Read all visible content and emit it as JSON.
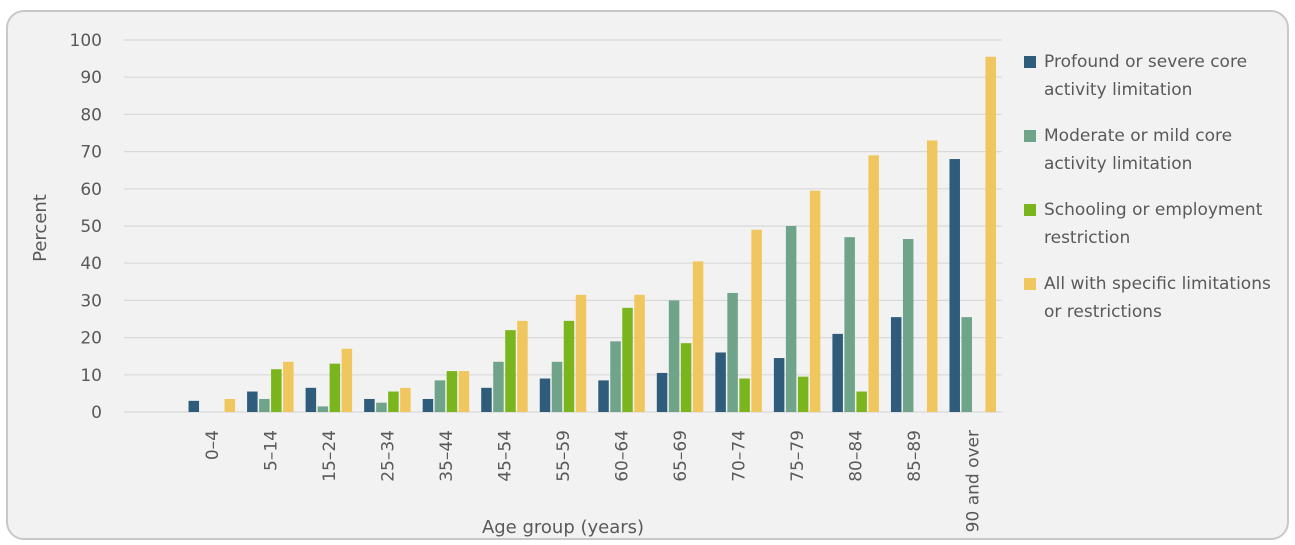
{
  "chart_data": {
    "type": "bar",
    "xlabel": "Age group (years)",
    "ylabel": "Percent",
    "ylim": [
      0,
      100
    ],
    "yticks": [
      0,
      10,
      20,
      30,
      40,
      50,
      60,
      70,
      80,
      90,
      100
    ],
    "grid": true,
    "legend_position": "right",
    "categories": [
      "0–4",
      "5–14",
      "15–24",
      "25–34",
      "35–44",
      "45–54",
      "55–59",
      "60–64",
      "65–69",
      "70–74",
      "75–79",
      "80–84",
      "85–89",
      "90 and over"
    ],
    "series": [
      {
        "name": "Profound or severe core activity limitation",
        "color": "#2e5c7a",
        "values": [
          3,
          5.5,
          6.5,
          3.5,
          3.5,
          6.5,
          9,
          8.5,
          10.5,
          16,
          14.5,
          21,
          25.5,
          68
        ]
      },
      {
        "name": "Moderate or mild core activity limitation",
        "color": "#6fa38a",
        "values": [
          0,
          3.5,
          1.5,
          2.5,
          8.5,
          13.5,
          13.5,
          19,
          30,
          32,
          50,
          47,
          46.5,
          25.5
        ]
      },
      {
        "name": "Schooling or employment restriction",
        "color": "#7ab51d",
        "values": [
          0,
          11.5,
          13,
          5.5,
          11,
          22,
          24.5,
          28,
          18.5,
          9,
          9.5,
          5.5,
          0,
          0
        ]
      },
      {
        "name": "All with specific limitations or restrictions",
        "color": "#f0c75e",
        "values": [
          3.5,
          13.5,
          17,
          6.5,
          11,
          24.5,
          31.5,
          31.5,
          40.5,
          49,
          59.5,
          69,
          73,
          95.5
        ]
      }
    ]
  },
  "legend_items": [
    {
      "label": "Profound or severe core activity limitation",
      "color": "#2e5c7a"
    },
    {
      "label": "Moderate or mild core activity limitation",
      "color": "#6fa38a"
    },
    {
      "label": "Schooling or employment restriction",
      "color": "#7ab51d"
    },
    {
      "label": "All with specific limitations or restrictions",
      "color": "#f0c75e"
    }
  ]
}
